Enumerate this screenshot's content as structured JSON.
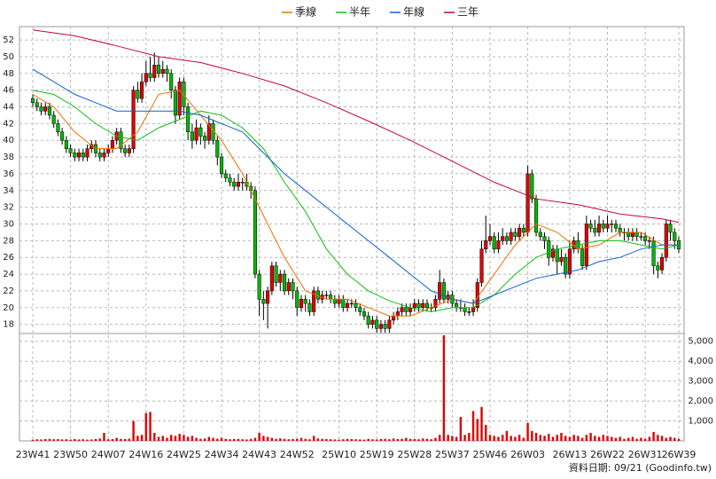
{
  "chart_data": {
    "type": "candlestick",
    "categories": [
      "23W41",
      null,
      null,
      null,
      null,
      null,
      null,
      null,
      null,
      "23W50",
      null,
      null,
      null,
      null,
      null,
      null,
      null,
      null,
      "24W07",
      null,
      null,
      null,
      null,
      null,
      null,
      null,
      null,
      "24W16",
      null,
      null,
      null,
      null,
      null,
      null,
      null,
      null,
      "24W25",
      null,
      null,
      null,
      null,
      null,
      null,
      null,
      null,
      "24W34",
      null,
      null,
      null,
      null,
      null,
      null,
      null,
      null,
      "24W43",
      null,
      null,
      null,
      null,
      null,
      null,
      null,
      null,
      "24W52",
      null,
      null,
      null,
      null,
      null,
      null,
      null,
      null,
      null,
      "25W10",
      null,
      null,
      null,
      null,
      null,
      null,
      null,
      null,
      "25W19",
      null,
      null,
      null,
      null,
      null,
      null,
      null,
      null,
      "25W28",
      null,
      null,
      null,
      null,
      null,
      null,
      null,
      null,
      "25W37",
      null,
      null,
      null,
      null,
      null,
      null,
      null,
      null,
      "25W46",
      null,
      null,
      null,
      null,
      null,
      null,
      null,
      null,
      "26W03",
      null,
      null,
      null,
      null,
      null,
      null,
      null,
      null,
      null,
      "26W13",
      null,
      null,
      null,
      null,
      null,
      null,
      null,
      null,
      "26W22",
      null,
      null,
      null,
      null,
      null,
      null,
      null,
      null,
      "26W31",
      null,
      null,
      null,
      null,
      null,
      null,
      null,
      "26W39"
    ],
    "ohlc": [
      [
        45,
        45.5,
        44,
        44.5
      ],
      [
        44.5,
        45,
        43.5,
        44
      ],
      [
        44,
        44.5,
        43,
        43.5
      ],
      [
        43.5,
        44.5,
        43,
        44
      ],
      [
        44,
        44.5,
        42.5,
        43
      ],
      [
        43,
        43.5,
        41.5,
        42
      ],
      [
        42,
        42.5,
        40.5,
        41
      ],
      [
        41,
        41.5,
        39.5,
        40
      ],
      [
        40,
        40.5,
        38.5,
        39
      ],
      [
        39,
        39.5,
        38,
        38.5
      ],
      [
        38.5,
        39,
        37.5,
        38
      ],
      [
        38,
        39,
        37.5,
        38.5
      ],
      [
        38.5,
        39,
        37.5,
        38
      ],
      [
        38,
        39.5,
        37.5,
        39
      ],
      [
        39,
        40,
        38.5,
        39.5
      ],
      [
        39.5,
        40,
        38,
        38.5
      ],
      [
        38.5,
        39,
        37.5,
        38
      ],
      [
        38,
        39,
        37.5,
        38.5
      ],
      [
        38.5,
        39.5,
        38,
        39
      ],
      [
        39,
        40.5,
        38.5,
        40
      ],
      [
        40,
        41.5,
        39.5,
        41
      ],
      [
        41,
        41.5,
        38.5,
        39
      ],
      [
        39,
        39.5,
        38,
        38.5
      ],
      [
        38.5,
        39.5,
        38,
        39
      ],
      [
        39,
        46.5,
        38.5,
        46
      ],
      [
        46,
        47,
        44.5,
        45
      ],
      [
        45,
        48,
        44.5,
        47
      ],
      [
        47,
        49.5,
        46.5,
        48
      ],
      [
        48,
        50,
        47,
        47.5
      ],
      [
        47.5,
        50.5,
        47,
        49
      ],
      [
        49,
        50,
        47.5,
        48
      ],
      [
        48,
        49.5,
        47.5,
        48.5
      ],
      [
        48.5,
        49,
        47,
        48
      ],
      [
        48,
        48.5,
        45,
        46
      ],
      [
        46,
        46.5,
        42,
        43
      ],
      [
        43,
        47.5,
        42.5,
        47
      ],
      [
        47,
        47.5,
        43,
        44
      ],
      [
        44,
        44.5,
        40,
        41
      ],
      [
        41,
        42,
        39,
        40
      ],
      [
        40,
        42.5,
        39.5,
        41.5
      ],
      [
        41.5,
        42,
        39.5,
        40.5
      ],
      [
        40.5,
        41,
        39,
        40
      ],
      [
        40,
        43,
        39.5,
        42
      ],
      [
        42,
        42.5,
        39.5,
        40
      ],
      [
        40,
        40.5,
        37,
        38
      ],
      [
        38,
        38.5,
        35.5,
        36
      ],
      [
        36,
        36.5,
        35,
        35.5
      ],
      [
        35.5,
        36,
        34.5,
        35
      ],
      [
        35,
        35.5,
        34,
        34.5
      ],
      [
        34.5,
        36,
        34,
        35
      ],
      [
        35,
        35.5,
        34,
        35
      ],
      [
        35,
        36,
        34,
        34.5
      ],
      [
        34.5,
        35,
        33,
        34
      ],
      [
        34,
        34.5,
        23.5,
        24
      ],
      [
        24,
        24.5,
        19,
        21
      ],
      [
        21,
        22,
        18.5,
        20.5
      ],
      [
        20.5,
        22.5,
        17.5,
        22
      ],
      [
        22,
        25.5,
        21.5,
        25
      ],
      [
        25,
        25.5,
        22.5,
        23
      ],
      [
        23,
        24.5,
        22,
        24
      ],
      [
        24,
        24.5,
        21.5,
        22
      ],
      [
        22,
        23.5,
        21.5,
        23
      ],
      [
        23,
        23.5,
        21,
        22
      ],
      [
        22,
        22.5,
        19,
        20
      ],
      [
        20,
        21.5,
        19.5,
        21
      ],
      [
        21,
        21.5,
        19.5,
        20.5
      ],
      [
        20.5,
        21,
        19,
        19.5
      ],
      [
        19.5,
        22.5,
        19,
        22
      ],
      [
        22,
        22.5,
        20.5,
        21
      ],
      [
        21,
        22,
        20.5,
        21.5
      ],
      [
        21.5,
        22,
        21,
        21.5
      ],
      [
        21.5,
        22,
        20.5,
        21
      ],
      [
        21,
        21.5,
        20,
        20.5
      ],
      [
        20.5,
        21.5,
        20,
        21
      ],
      [
        21,
        21.5,
        19.5,
        20
      ],
      [
        20,
        21,
        19.5,
        20.5
      ],
      [
        20.5,
        21,
        20,
        20.5
      ],
      [
        20.5,
        21,
        19.5,
        20
      ],
      [
        20,
        20.5,
        19,
        19.5
      ],
      [
        19.5,
        20,
        18.5,
        19
      ],
      [
        19,
        19.5,
        17.5,
        18
      ],
      [
        18,
        19,
        17.5,
        18.5
      ],
      [
        18.5,
        19,
        17,
        17.5
      ],
      [
        17.5,
        18.5,
        17,
        18
      ],
      [
        18,
        18.5,
        17,
        17.5
      ],
      [
        17.5,
        19,
        17,
        18.5
      ],
      [
        18.5,
        19.5,
        18,
        19
      ],
      [
        19,
        20,
        18.5,
        19.5
      ],
      [
        19.5,
        20.5,
        19,
        20
      ],
      [
        20,
        20.5,
        19,
        19.5
      ],
      [
        19.5,
        20.5,
        19,
        20
      ],
      [
        20,
        21,
        19.5,
        20.5
      ],
      [
        20.5,
        21,
        19.5,
        20
      ],
      [
        20,
        21,
        19.5,
        20.5
      ],
      [
        20.5,
        21,
        19.5,
        20
      ],
      [
        20,
        20.5,
        19.5,
        20
      ],
      [
        20,
        21.5,
        19.5,
        21
      ],
      [
        21,
        24.5,
        20.5,
        23
      ],
      [
        23,
        23.5,
        20.5,
        21
      ],
      [
        21,
        22,
        20.5,
        21.5
      ],
      [
        21.5,
        22,
        20,
        20.5
      ],
      [
        20.5,
        21,
        19.5,
        20
      ],
      [
        20,
        21,
        19.5,
        20
      ],
      [
        20,
        20.5,
        19,
        19.5
      ],
      [
        19.5,
        20,
        19,
        19.5
      ],
      [
        19.5,
        21,
        19,
        20
      ],
      [
        20,
        23.5,
        19.5,
        23
      ],
      [
        23,
        28,
        22.5,
        27
      ],
      [
        27,
        31,
        26.5,
        28
      ],
      [
        28,
        30,
        27.5,
        28.5
      ],
      [
        28.5,
        29,
        26.5,
        27
      ],
      [
        27,
        29,
        26.5,
        28
      ],
      [
        28,
        29.5,
        27.5,
        28.5
      ],
      [
        28.5,
        29,
        27.5,
        28
      ],
      [
        28,
        29.5,
        27.5,
        29
      ],
      [
        29,
        29.5,
        28,
        28.5
      ],
      [
        28.5,
        30,
        28,
        29.5
      ],
      [
        29.5,
        30,
        28.5,
        29
      ],
      [
        29,
        37,
        28.5,
        36
      ],
      [
        36,
        36.5,
        32.5,
        33
      ],
      [
        33,
        33.5,
        28.5,
        29
      ],
      [
        29,
        29.5,
        28,
        28.5
      ],
      [
        28.5,
        29,
        27,
        28
      ],
      [
        28,
        28.5,
        25,
        26
      ],
      [
        26,
        27.5,
        25.5,
        27
      ],
      [
        27,
        27.5,
        24,
        25.5
      ],
      [
        25.5,
        27,
        25,
        26
      ],
      [
        26,
        26.5,
        23.5,
        24
      ],
      [
        24,
        28,
        23.5,
        27
      ],
      [
        27,
        28.5,
        26.5,
        28
      ],
      [
        28,
        29,
        26.5,
        27
      ],
      [
        27,
        27.5,
        24.5,
        25
      ],
      [
        25,
        31,
        24.5,
        30
      ],
      [
        30,
        30.5,
        29,
        29.5
      ],
      [
        29.5,
        30.5,
        28.5,
        29
      ],
      [
        29,
        31,
        28.5,
        30
      ],
      [
        30,
        30.5,
        29,
        29.5
      ],
      [
        29.5,
        31,
        29,
        30
      ],
      [
        30,
        30.5,
        29,
        30
      ],
      [
        30,
        30.5,
        29,
        29.5
      ],
      [
        29.5,
        30,
        28.5,
        29
      ],
      [
        29,
        29.5,
        28,
        29
      ],
      [
        29,
        29.5,
        28,
        28.5
      ],
      [
        28.5,
        29.5,
        28,
        29
      ],
      [
        29,
        29.5,
        28,
        28.5
      ],
      [
        28.5,
        29,
        28,
        28.5
      ],
      [
        28.5,
        29,
        27.5,
        28
      ],
      [
        28,
        28.5,
        27,
        28
      ],
      [
        28,
        28.5,
        24,
        25
      ],
      [
        25,
        25.5,
        23.5,
        24.5
      ],
      [
        24.5,
        26.5,
        24,
        26
      ],
      [
        26,
        30.5,
        25.5,
        30
      ],
      [
        30,
        30.5,
        28,
        29
      ],
      [
        29,
        29.5,
        27,
        28
      ],
      [
        28,
        28.5,
        26.5,
        27
      ]
    ],
    "up_color": "#e00000",
    "down_color": "#00b800",
    "wick_color": "#000000",
    "ylim": [
      16.9,
      53.6
    ],
    "yticks": [
      18,
      20,
      22,
      24,
      26,
      28,
      30,
      32,
      34,
      36,
      38,
      40,
      42,
      44,
      46,
      48,
      50,
      52
    ],
    "grid": true,
    "series": [
      {
        "name": "季線",
        "color": "#f07000",
        "x": [
          0,
          5,
          10,
          15,
          20,
          25,
          30,
          35,
          40,
          45,
          50,
          55,
          60,
          65,
          70,
          75,
          80,
          85,
          90,
          95,
          100,
          105,
          110,
          115,
          120,
          125,
          130,
          135,
          140,
          145,
          150,
          154
        ],
        "values": [
          45.5,
          44,
          41,
          39,
          39,
          41,
          45.5,
          46,
          43,
          40,
          36,
          31,
          26,
          22,
          21,
          21,
          20,
          19,
          19,
          20,
          21,
          20.5,
          24,
          27.5,
          30,
          29,
          27,
          27.5,
          29,
          29,
          27.5,
          27.5
        ]
      },
      {
        "name": "半年",
        "color": "#10c010",
        "x": [
          0,
          5,
          10,
          15,
          20,
          25,
          30,
          35,
          40,
          45,
          50,
          55,
          60,
          65,
          70,
          75,
          80,
          85,
          90,
          95,
          100,
          105,
          110,
          115,
          120,
          125,
          130,
          135,
          140,
          145,
          150,
          154
        ],
        "values": [
          46,
          45.5,
          44,
          42,
          40.5,
          40,
          41.5,
          42.5,
          43.5,
          43,
          41.5,
          39,
          35,
          31.5,
          27,
          24,
          22,
          20.8,
          20,
          19.5,
          20,
          20,
          21.5,
          24,
          26,
          27,
          27.5,
          28,
          28,
          27.5,
          27,
          27.5
        ]
      },
      {
        "name": "年線",
        "color": "#1060d0",
        "x": [
          0,
          5,
          10,
          15,
          20,
          25,
          30,
          35,
          40,
          45,
          50,
          55,
          60,
          65,
          70,
          75,
          80,
          85,
          90,
          95,
          100,
          105,
          110,
          115,
          120,
          125,
          130,
          135,
          140,
          145,
          150,
          154
        ],
        "values": [
          48.5,
          47,
          45.5,
          44.5,
          43.5,
          43.5,
          43.5,
          43.5,
          43,
          42,
          41,
          38.5,
          36,
          34,
          32,
          30,
          28,
          26,
          24,
          22,
          21,
          20.5,
          21.5,
          22.5,
          23.5,
          24,
          24.5,
          25.5,
          26,
          27,
          27.5,
          27.5
        ]
      },
      {
        "name": "三年",
        "color": "#c8004a",
        "x": [
          0,
          10,
          20,
          30,
          40,
          50,
          60,
          70,
          80,
          90,
          100,
          110,
          115,
          120,
          130,
          140,
          150,
          154
        ],
        "values": [
          53.2,
          52.5,
          51.3,
          50,
          49.3,
          48,
          46.5,
          44.5,
          42.3,
          40,
          37.5,
          35,
          34,
          33,
          32.3,
          31.2,
          30.6,
          30.2
        ]
      }
    ],
    "volume": {
      "color": "#e00000",
      "ylim": [
        0,
        5300
      ],
      "yticks": [
        {
          "value": 1000,
          "label": "1,000"
        },
        {
          "value": 2000,
          "label": "2,000"
        },
        {
          "value": 3000,
          "label": "3,000"
        },
        {
          "value": 4000,
          "label": "4,000"
        },
        {
          "value": 5000,
          "label": "5,000"
        }
      ],
      "values": [
        60,
        80,
        70,
        90,
        100,
        80,
        90,
        70,
        80,
        60,
        90,
        70,
        80,
        60,
        70,
        90,
        120,
        400,
        80,
        90,
        150,
        100,
        90,
        110,
        1000,
        250,
        300,
        1400,
        1450,
        400,
        200,
        250,
        150,
        300,
        250,
        350,
        300,
        200,
        250,
        150,
        100,
        120,
        200,
        150,
        100,
        150,
        100,
        80,
        90,
        100,
        80,
        70,
        100,
        150,
        400,
        250,
        200,
        150,
        100,
        120,
        100,
        80,
        90,
        100,
        150,
        100,
        80,
        250,
        120,
        100,
        90,
        80,
        70,
        60,
        80,
        100,
        90,
        80,
        70,
        60,
        100,
        80,
        70,
        90,
        100,
        80,
        120,
        90,
        100,
        150,
        100,
        90,
        80,
        120,
        100,
        80,
        150,
        300,
        5300,
        300,
        250,
        200,
        1200,
        300,
        400,
        1500,
        1100,
        1700,
        800,
        300,
        250,
        200,
        300,
        500,
        250,
        200,
        300,
        150,
        900,
        500,
        400,
        300,
        250,
        350,
        200,
        300,
        400,
        250,
        200,
        300,
        250,
        150,
        300,
        400,
        250,
        200,
        300,
        250,
        200,
        150,
        200,
        100,
        150,
        200,
        100,
        150,
        100,
        200,
        450,
        300,
        250,
        150,
        200,
        150,
        100
      ]
    },
    "footer": "資料日期: 09/21  (Goodinfo.tw)"
  }
}
